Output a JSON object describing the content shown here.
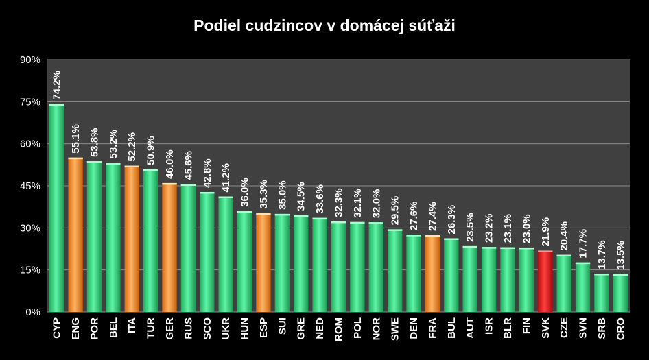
{
  "chart_data": {
    "type": "bar",
    "title": "Podiel cudzincov v domácej súťaži",
    "xlabel": "",
    "ylabel": "",
    "ylim": [
      0,
      90
    ],
    "yticks": [
      0,
      15,
      30,
      45,
      60,
      75,
      90
    ],
    "ytick_labels": [
      "0%",
      "15%",
      "30%",
      "45%",
      "60%",
      "75%",
      "90%"
    ],
    "grid": true,
    "legend": "none",
    "colors": {
      "background": "#000000",
      "plot_area": "#404040",
      "gridline": "#8c8c8c",
      "green_bar": "#2ed67f",
      "orange_bar": "#f08a2a",
      "red_bar": "#e01818",
      "label_default": "#ffffff",
      "label_highlight": "#e01818"
    },
    "categories": [
      "CYP",
      "ENG",
      "POR",
      "BEL",
      "ITA",
      "TUR",
      "GER",
      "RUS",
      "SCO",
      "UKR",
      "HUN",
      "ESP",
      "SUI",
      "GRE",
      "NED",
      "ROM",
      "POL",
      "NOR",
      "SWE",
      "DEN",
      "FRA",
      "BUL",
      "AUT",
      "ISR",
      "BLR",
      "FIN",
      "SVK",
      "CZE",
      "SVN",
      "SRB",
      "CRO"
    ],
    "values": [
      74.2,
      55.1,
      53.8,
      53.2,
      52.2,
      50.9,
      46.0,
      45.6,
      42.8,
      41.2,
      36.0,
      35.3,
      35.0,
      34.5,
      33.6,
      32.3,
      32.1,
      32.0,
      29.5,
      27.6,
      27.4,
      26.3,
      23.5,
      23.2,
      23.1,
      23.0,
      21.9,
      20.4,
      17.7,
      13.7,
      13.5
    ],
    "labels": [
      "74.2%",
      "55.1%",
      "53.8%",
      "53.2%",
      "52.2%",
      "50.9%",
      "46.0%",
      "45.6%",
      "42.8%",
      "41.2%",
      "36.0%",
      "35.3%",
      "35.0%",
      "34.5%",
      "33.6%",
      "32.3%",
      "32.1%",
      "32.0%",
      "29.5%",
      "27.6%",
      "27.4%",
      "26.3%",
      "23.5%",
      "23.2%",
      "23.1%",
      "23.0%",
      "21.9%",
      "20.4%",
      "17.7%",
      "13.7%",
      "13.5%"
    ],
    "bar_colors": [
      "green",
      "orange",
      "green",
      "green",
      "orange",
      "green",
      "orange",
      "green",
      "green",
      "green",
      "green",
      "orange",
      "green",
      "green",
      "green",
      "green",
      "green",
      "green",
      "green",
      "green",
      "orange",
      "green",
      "green",
      "green",
      "green",
      "green",
      "red",
      "green",
      "green",
      "green",
      "green"
    ],
    "highlight_labels": [
      "SVK"
    ]
  }
}
